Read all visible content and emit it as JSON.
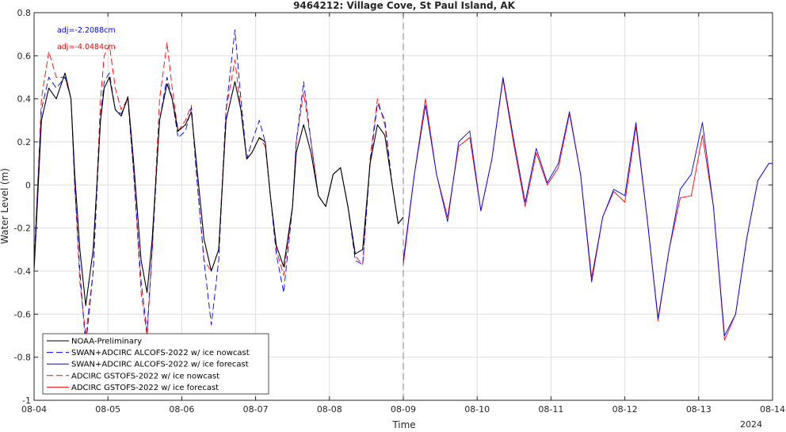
{
  "chart_data": {
    "type": "line",
    "title": "9464212: Village Cove, St Paul Island, AK",
    "xlabel": "Time",
    "ylabel": "Water Level (m)",
    "x_ticks": [
      "08-04",
      "08-05",
      "08-06",
      "08-07",
      "08-08",
      "08-09",
      "08-10",
      "08-11",
      "08-12",
      "08-13",
      "08-14"
    ],
    "x_year_label": "2024",
    "ylim": [
      -1,
      0.8
    ],
    "y_ticks": [
      "-1",
      "-0.8",
      "-0.6",
      "-0.4",
      "-0.2",
      "0",
      "0.2",
      "0.4",
      "0.6",
      "0.8"
    ],
    "grid": true,
    "nowcast_forecast_split": "08-09",
    "legend_position": "bottom-left",
    "annotations": [
      {
        "text": "adj=-2.2088cm",
        "color": "#0000ff"
      },
      {
        "text": "adj=-4.0484cm",
        "color": "#ff0000"
      }
    ],
    "series": [
      {
        "name": "NOAA-Preliminary",
        "color": "#000000",
        "style": "solid",
        "x": [
          0,
          0.1,
          0.2,
          0.3,
          0.42,
          0.5,
          0.55,
          0.62,
          0.7,
          0.8,
          0.9,
          0.95,
          1.02,
          1.1,
          1.18,
          1.27,
          1.35,
          1.45,
          1.53,
          1.6,
          1.7,
          1.8,
          1.87,
          1.95,
          2.05,
          2.13,
          2.2,
          2.3,
          2.4,
          2.5,
          2.6,
          2.72,
          2.8,
          2.88,
          2.95,
          3.05,
          3.13,
          3.2,
          3.28,
          3.38,
          3.5,
          3.55,
          3.65,
          3.75,
          3.85,
          3.95,
          4.05,
          4.15,
          4.25,
          4.35,
          4.45,
          4.55,
          4.65,
          4.75,
          4.85,
          4.93,
          5.0
        ],
        "y": [
          -0.4,
          0.3,
          0.45,
          0.4,
          0.52,
          0.4,
          0.05,
          -0.3,
          -0.56,
          -0.3,
          0.3,
          0.45,
          0.5,
          0.35,
          0.32,
          0.41,
          0.1,
          -0.35,
          -0.5,
          -0.25,
          0.3,
          0.47,
          0.4,
          0.25,
          0.28,
          0.34,
          0.1,
          -0.25,
          -0.4,
          -0.3,
          0.3,
          0.48,
          0.35,
          0.12,
          0.15,
          0.22,
          0.2,
          -0.05,
          -0.28,
          -0.38,
          -0.1,
          0.15,
          0.28,
          0.15,
          -0.05,
          -0.1,
          0.05,
          0.08,
          -0.1,
          -0.32,
          -0.3,
          0.1,
          0.28,
          0.23,
          0.0,
          -0.18,
          -0.15
        ]
      },
      {
        "name": "SWAN+ADCIRC ALCOFS-2022 w/ ice nowcast",
        "color": "#0000ff",
        "style": "dashed",
        "x": [
          0,
          0.1,
          0.2,
          0.3,
          0.42,
          0.5,
          0.55,
          0.62,
          0.7,
          0.8,
          0.9,
          0.95,
          1.02,
          1.1,
          1.18,
          1.27,
          1.35,
          1.45,
          1.53,
          1.6,
          1.7,
          1.8,
          1.87,
          1.95,
          2.05,
          2.13,
          2.2,
          2.3,
          2.4,
          2.5,
          2.6,
          2.72,
          2.8,
          2.88,
          2.95,
          3.05,
          3.13,
          3.2,
          3.28,
          3.38,
          3.5,
          3.55,
          3.65,
          3.75,
          3.85,
          3.95,
          4.05,
          4.15,
          4.25,
          4.35,
          4.45,
          4.55,
          4.65,
          4.75,
          4.85,
          4.93,
          5.0
        ],
        "y": [
          -0.35,
          0.35,
          0.5,
          0.45,
          0.5,
          0.4,
          0.0,
          -0.4,
          -0.75,
          -0.4,
          0.32,
          0.48,
          0.52,
          0.35,
          0.33,
          0.4,
          0.05,
          -0.45,
          -0.68,
          -0.3,
          0.3,
          0.5,
          0.4,
          0.22,
          0.25,
          0.36,
          0.05,
          -0.35,
          -0.65,
          -0.35,
          0.35,
          0.72,
          0.4,
          0.12,
          0.2,
          0.3,
          0.2,
          -0.05,
          -0.32,
          -0.5,
          -0.1,
          0.2,
          0.48,
          0.2,
          -0.05,
          -0.1,
          0.05,
          0.08,
          -0.1,
          -0.35,
          -0.37,
          0.1,
          0.38,
          0.3,
          0.0,
          -0.18,
          -0.15
        ]
      },
      {
        "name": "SWAN+ADCIRC ALCOFS-2022 w/ ice forecast",
        "color": "#0000ff",
        "style": "solid",
        "x": [
          5.0,
          5.15,
          5.3,
          5.45,
          5.6,
          5.75,
          5.9,
          6.05,
          6.2,
          6.35,
          6.5,
          6.65,
          6.8,
          6.95,
          7.1,
          7.25,
          7.4,
          7.55,
          7.7,
          7.85,
          8.0,
          8.15,
          8.3,
          8.45,
          8.6,
          8.75,
          8.9,
          9.05,
          9.2,
          9.35,
          9.5,
          9.65,
          9.8,
          9.95,
          10.0
        ],
        "y": [
          -0.35,
          0.05,
          0.37,
          0.05,
          -0.17,
          0.2,
          0.25,
          -0.12,
          0.12,
          0.5,
          0.2,
          -0.08,
          0.17,
          0.01,
          0.1,
          0.34,
          0.05,
          -0.45,
          -0.15,
          -0.02,
          -0.05,
          0.29,
          -0.15,
          -0.62,
          -0.3,
          -0.02,
          0.05,
          0.29,
          -0.1,
          -0.7,
          -0.6,
          -0.25,
          0.02,
          0.1,
          0.1
        ]
      },
      {
        "name": "ADCIRC GSTOFS-2022 w/ ice nowcast",
        "color": "#ff0000",
        "style": "dashed",
        "x": [
          0,
          0.1,
          0.2,
          0.3,
          0.42,
          0.5,
          0.55,
          0.62,
          0.7,
          0.8,
          0.9,
          0.95,
          1.02,
          1.1,
          1.18,
          1.27,
          1.35,
          1.45,
          1.53,
          1.6,
          1.7,
          1.8,
          1.87,
          1.95,
          2.05,
          2.13,
          2.2,
          2.3,
          2.4,
          2.5,
          2.6,
          2.72,
          2.8,
          2.88,
          2.95,
          3.05,
          3.13,
          3.2,
          3.28,
          3.38,
          3.5,
          3.55,
          3.65,
          3.75,
          3.85,
          3.95,
          4.05,
          4.15,
          4.25,
          4.35,
          4.45,
          4.55,
          4.65,
          4.75,
          4.85,
          4.93,
          5.0
        ],
        "y": [
          -0.38,
          0.4,
          0.62,
          0.5,
          0.5,
          0.4,
          0.0,
          -0.45,
          -0.7,
          -0.4,
          0.4,
          0.6,
          0.65,
          0.45,
          0.35,
          0.4,
          0.05,
          -0.5,
          -0.7,
          -0.3,
          0.4,
          0.66,
          0.45,
          0.25,
          0.3,
          0.37,
          0.05,
          -0.35,
          -0.4,
          -0.3,
          0.35,
          0.58,
          0.35,
          0.12,
          0.15,
          0.22,
          0.18,
          -0.05,
          -0.3,
          -0.42,
          -0.1,
          0.2,
          0.43,
          0.2,
          -0.05,
          -0.1,
          0.05,
          0.08,
          -0.1,
          -0.33,
          -0.37,
          0.12,
          0.4,
          0.28,
          0.0,
          -0.18,
          -0.15
        ]
      },
      {
        "name": "ADCIRC GSTOFS-2022 w/ ice forecast",
        "color": "#ff0000",
        "style": "solid",
        "x": [
          5.0,
          5.15,
          5.3,
          5.45,
          5.6,
          5.75,
          5.9,
          6.05,
          6.2,
          6.35,
          6.5,
          6.65,
          6.8,
          6.95,
          7.1,
          7.25,
          7.4,
          7.55,
          7.7,
          7.85,
          8.0,
          8.15,
          8.3,
          8.45,
          8.6,
          8.75,
          8.9,
          9.05,
          9.2,
          9.35,
          9.5,
          9.65,
          9.8,
          9.95,
          10.0
        ],
        "y": [
          -0.37,
          0.05,
          0.4,
          0.05,
          -0.15,
          0.18,
          0.22,
          -0.12,
          0.12,
          0.49,
          0.18,
          -0.1,
          0.15,
          0.0,
          0.08,
          0.33,
          0.05,
          -0.43,
          -0.15,
          -0.03,
          -0.08,
          0.27,
          -0.15,
          -0.63,
          -0.3,
          -0.06,
          -0.05,
          0.23,
          -0.1,
          -0.72,
          -0.6,
          -0.25,
          0.02,
          0.1,
          0.1
        ]
      }
    ]
  }
}
